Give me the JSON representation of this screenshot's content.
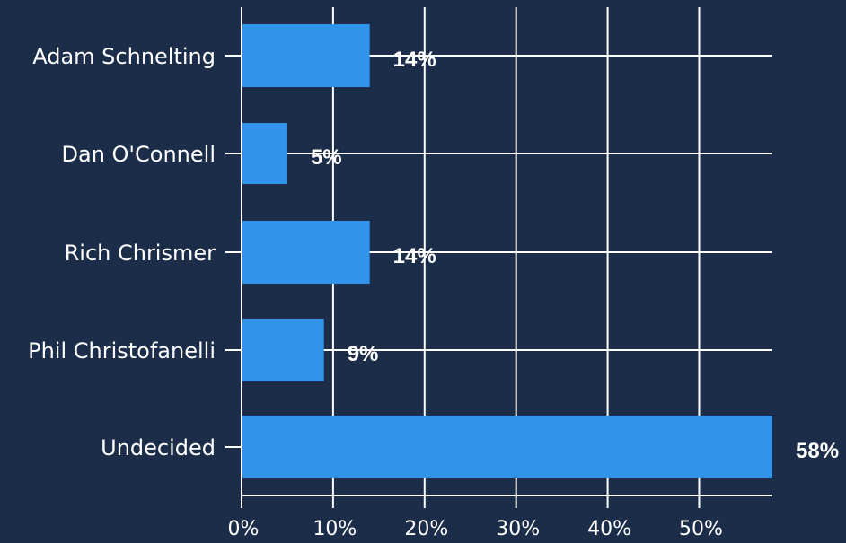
{
  "chart_data": {
    "type": "bar",
    "orientation": "horizontal",
    "categories": [
      "Adam Schnelting",
      "Dan O'Connell",
      "Rich Chrismer",
      "Phil Christofanelli",
      "Undecided"
    ],
    "values": [
      14,
      5,
      14,
      9,
      58
    ],
    "value_labels": [
      "14%",
      "5%",
      "14%",
      "9%",
      "58%"
    ],
    "x_ticks": [
      "0%",
      "10%",
      "20%",
      "30%",
      "40%",
      "50%"
    ],
    "x_tick_values": [
      0,
      10,
      20,
      30,
      40,
      50
    ],
    "xlim": [
      0,
      58
    ],
    "grid": true,
    "title": "",
    "xlabel": "",
    "ylabel": ""
  },
  "colors": {
    "background": "#1c2d4a",
    "bar": "#2f94ea",
    "grid": "#ffffff",
    "text": "#ffffff"
  }
}
